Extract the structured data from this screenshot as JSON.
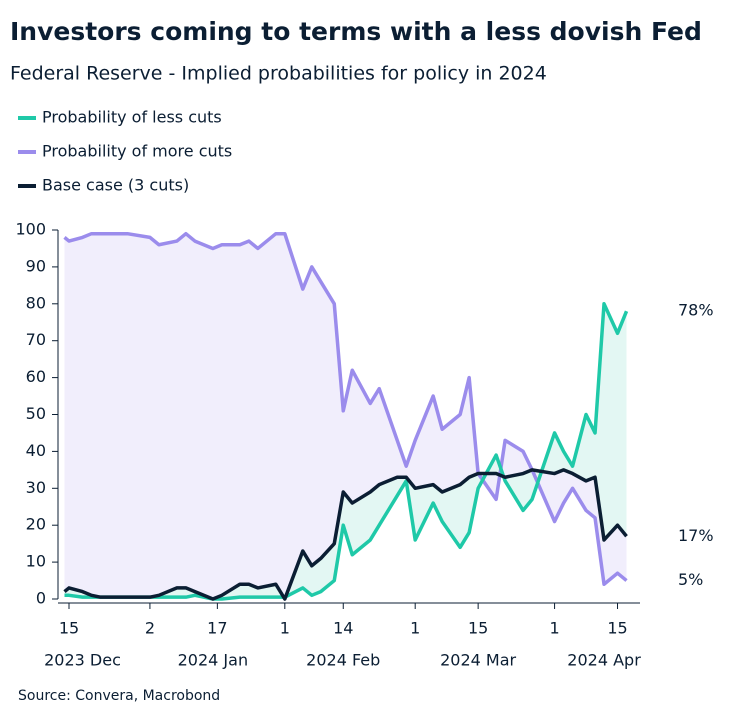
{
  "chart_data": {
    "type": "line",
    "title": "Investors coming to terms with a less dovish Fed",
    "subtitle": "Federal Reserve - Implied probabilities for policy in 2024",
    "source": "Source: Convera, Macrobond",
    "x": [
      "2023-12-14",
      "2023-12-15",
      "2023-12-18",
      "2023-12-20",
      "2023-12-22",
      "2023-12-26",
      "2023-12-28",
      "2024-01-02",
      "2024-01-04",
      "2024-01-08",
      "2024-01-10",
      "2024-01-12",
      "2024-01-16",
      "2024-01-18",
      "2024-01-22",
      "2024-01-24",
      "2024-01-26",
      "2024-01-30",
      "2024-02-01",
      "2024-02-05",
      "2024-02-07",
      "2024-02-09",
      "2024-02-12",
      "2024-02-14",
      "2024-02-16",
      "2024-02-20",
      "2024-02-22",
      "2024-02-26",
      "2024-02-28",
      "2024-03-01",
      "2024-03-05",
      "2024-03-07",
      "2024-03-11",
      "2024-03-13",
      "2024-03-15",
      "2024-03-19",
      "2024-03-21",
      "2024-03-25",
      "2024-03-27",
      "2024-04-01",
      "2024-04-03",
      "2024-04-05",
      "2024-04-08",
      "2024-04-10",
      "2024-04-12",
      "2024-04-15",
      "2024-04-17"
    ],
    "series": [
      {
        "name": "Probability of less cuts",
        "color": "#1fc9a8",
        "fill": "#e3f7f3",
        "values": [
          1,
          1,
          0.5,
          0.5,
          0.5,
          0.5,
          0.5,
          0.5,
          0.5,
          0.5,
          0.5,
          1,
          0,
          0,
          0.5,
          0.5,
          0.5,
          0.5,
          0.5,
          3,
          1,
          2,
          5,
          20,
          12,
          16,
          20,
          28,
          32,
          16,
          26,
          21,
          14,
          18,
          30,
          39,
          32,
          24,
          27,
          45,
          40,
          36,
          50,
          45,
          80,
          72,
          78
        ],
        "value_labels": [
          null,
          null,
          null,
          null,
          null,
          null,
          null,
          null,
          null,
          null,
          null,
          null,
          null,
          null,
          null,
          null,
          null,
          null,
          null,
          null,
          null,
          null,
          null,
          null,
          null,
          null,
          null,
          null,
          null,
          null,
          null,
          null,
          null,
          null,
          null,
          null,
          null,
          null,
          null,
          null,
          null,
          null,
          null,
          null,
          null,
          null,
          "78%"
        ]
      },
      {
        "name": "Probability of more cuts",
        "color": "#9b8cec",
        "fill": "#f1eefc",
        "values": [
          98,
          97,
          98,
          99,
          99,
          99,
          99,
          98,
          96,
          97,
          99,
          97,
          95,
          96,
          96,
          97,
          95,
          99,
          99,
          84,
          90,
          86,
          80,
          51,
          62,
          53,
          57,
          43,
          36,
          43,
          55,
          46,
          50,
          60,
          34,
          27,
          43,
          40,
          35,
          21,
          26,
          30,
          24,
          22,
          4,
          7,
          5
        ],
        "value_labels": [
          null,
          null,
          null,
          null,
          null,
          null,
          null,
          null,
          null,
          null,
          null,
          null,
          null,
          null,
          null,
          null,
          null,
          null,
          null,
          null,
          null,
          null,
          null,
          null,
          null,
          null,
          null,
          null,
          null,
          null,
          null,
          null,
          null,
          null,
          null,
          null,
          null,
          null,
          null,
          null,
          null,
          null,
          null,
          null,
          null,
          null,
          "5%"
        ]
      },
      {
        "name": "Base case (3 cuts)",
        "color": "#0b1e33",
        "values": [
          2,
          3,
          2,
          1,
          0.5,
          0.5,
          0.5,
          0.5,
          1,
          3,
          3,
          2,
          0,
          1,
          4,
          4,
          3,
          4,
          0,
          13,
          9,
          11,
          15,
          29,
          26,
          29,
          31,
          33,
          33,
          30,
          31,
          29,
          31,
          33,
          34,
          34,
          33,
          34,
          35,
          34,
          35,
          34,
          32,
          33,
          16,
          20,
          17
        ],
        "value_labels": [
          null,
          null,
          null,
          null,
          null,
          null,
          null,
          null,
          null,
          null,
          null,
          null,
          null,
          null,
          null,
          null,
          null,
          null,
          null,
          null,
          null,
          null,
          null,
          null,
          null,
          null,
          null,
          null,
          null,
          null,
          null,
          null,
          null,
          null,
          null,
          null,
          null,
          null,
          null,
          null,
          null,
          null,
          null,
          null,
          null,
          null,
          "17%"
        ]
      }
    ],
    "xlim": [
      "2023-12-13",
      "2024-04-20"
    ],
    "xticks": [
      {
        "value": "2023-12-15",
        "label": "15"
      },
      {
        "value": "2024-01-02",
        "label": "2"
      },
      {
        "value": "2024-01-17",
        "label": "17"
      },
      {
        "value": "2024-02-01",
        "label": "1"
      },
      {
        "value": "2024-02-14",
        "label": "14"
      },
      {
        "value": "2024-03-01",
        "label": "1"
      },
      {
        "value": "2024-03-15",
        "label": "15"
      },
      {
        "value": "2024-04-01",
        "label": "1"
      },
      {
        "value": "2024-04-15",
        "label": "15"
      }
    ],
    "x_groups": [
      {
        "value": "2023-12-18",
        "label": "2023 Dec"
      },
      {
        "value": "2024-01-16",
        "label": "2024 Jan"
      },
      {
        "value": "2024-02-14",
        "label": "2024 Feb"
      },
      {
        "value": "2024-03-15",
        "label": "2024 Mar"
      },
      {
        "value": "2024-04-12",
        "label": "2024 Apr"
      }
    ],
    "ylim": [
      0,
      100
    ],
    "yticks": [
      0,
      10,
      20,
      30,
      40,
      50,
      60,
      70,
      80,
      90,
      100
    ]
  }
}
